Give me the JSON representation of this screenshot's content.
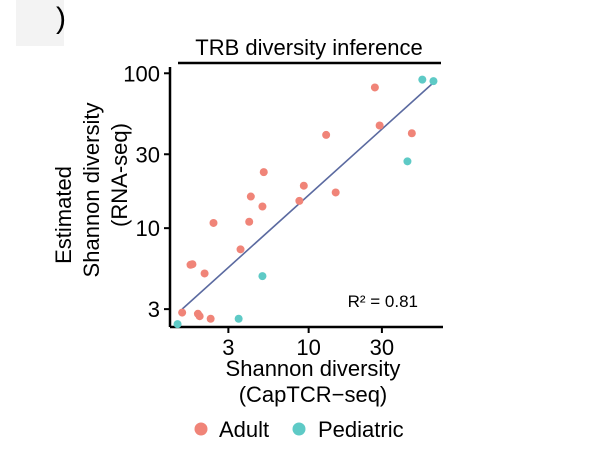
{
  "panel_label": ")",
  "chart_data": {
    "type": "scatter",
    "title": "TRB diversity inference",
    "xlabel_lines": [
      "Shannon diversity",
      "(CapTCR−seq)"
    ],
    "ylabel_lines": [
      "Estimated",
      "Shannon diversity",
      "(RNA-seq)"
    ],
    "xscale": "log",
    "yscale": "log",
    "xlim": [
      1.25,
      75
    ],
    "ylim": [
      2.3,
      105
    ],
    "xticks": [
      3,
      10,
      30
    ],
    "xtick_labels": [
      "3",
      "10",
      "30"
    ],
    "yticks": [
      3,
      10,
      30,
      100
    ],
    "ytick_labels": [
      "3",
      "10",
      "30",
      "100"
    ],
    "grid": false,
    "legend_position": "bottom",
    "annotation": "R² =  0.81",
    "fit_line": {
      "x": [
        1.5,
        65
      ],
      "y": [
        3.0,
        87
      ]
    },
    "series": [
      {
        "name": "Adult",
        "color": "#f08478",
        "points": [
          {
            "x": 1.5,
            "y": 2.85
          },
          {
            "x": 1.7,
            "y": 5.8
          },
          {
            "x": 1.75,
            "y": 5.85
          },
          {
            "x": 1.9,
            "y": 2.8
          },
          {
            "x": 1.95,
            "y": 2.7
          },
          {
            "x": 2.1,
            "y": 5.1
          },
          {
            "x": 2.3,
            "y": 2.6
          },
          {
            "x": 2.4,
            "y": 10.8
          },
          {
            "x": 3.6,
            "y": 7.3
          },
          {
            "x": 4.1,
            "y": 11.0
          },
          {
            "x": 4.2,
            "y": 16.0
          },
          {
            "x": 5.0,
            "y": 13.8
          },
          {
            "x": 5.1,
            "y": 23.0
          },
          {
            "x": 8.7,
            "y": 15.0
          },
          {
            "x": 9.3,
            "y": 18.8
          },
          {
            "x": 13.0,
            "y": 40.0
          },
          {
            "x": 15.0,
            "y": 17.0
          },
          {
            "x": 27.0,
            "y": 81.0
          },
          {
            "x": 29.0,
            "y": 46.0
          },
          {
            "x": 47.0,
            "y": 41.0
          }
        ]
      },
      {
        "name": "Pediatric",
        "color": "#5ecac6",
        "points": [
          {
            "x": 1.4,
            "y": 2.4
          },
          {
            "x": 3.5,
            "y": 2.6
          },
          {
            "x": 5.0,
            "y": 4.9
          },
          {
            "x": 44.0,
            "y": 27.0
          },
          {
            "x": 55.0,
            "y": 91.0
          },
          {
            "x": 65.0,
            "y": 89.0
          }
        ]
      }
    ]
  }
}
